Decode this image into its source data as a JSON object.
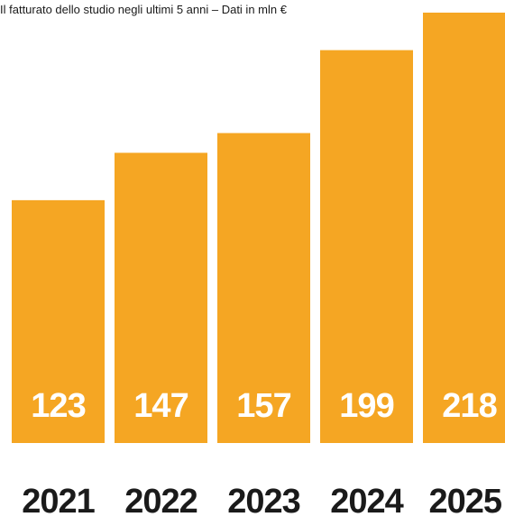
{
  "chart_data": {
    "type": "bar",
    "title": "Il fatturato dello studio negli ultimi 5 anni – Dati in mln €",
    "categories": [
      "2021",
      "2022",
      "2023",
      "2024",
      "2025"
    ],
    "values": [
      123,
      147,
      157,
      199,
      218
    ],
    "value_labels": [
      "123",
      "147",
      "157",
      "199",
      "218"
    ],
    "xlabel": "",
    "ylabel": "",
    "ylim": [
      0,
      218
    ],
    "grid": false,
    "legend": "none",
    "colors": {
      "bar": "#F5A623",
      "value_text": "#FFFFFF",
      "category_text": "#1A1A1A",
      "title_text": "#1A1A1A"
    }
  }
}
